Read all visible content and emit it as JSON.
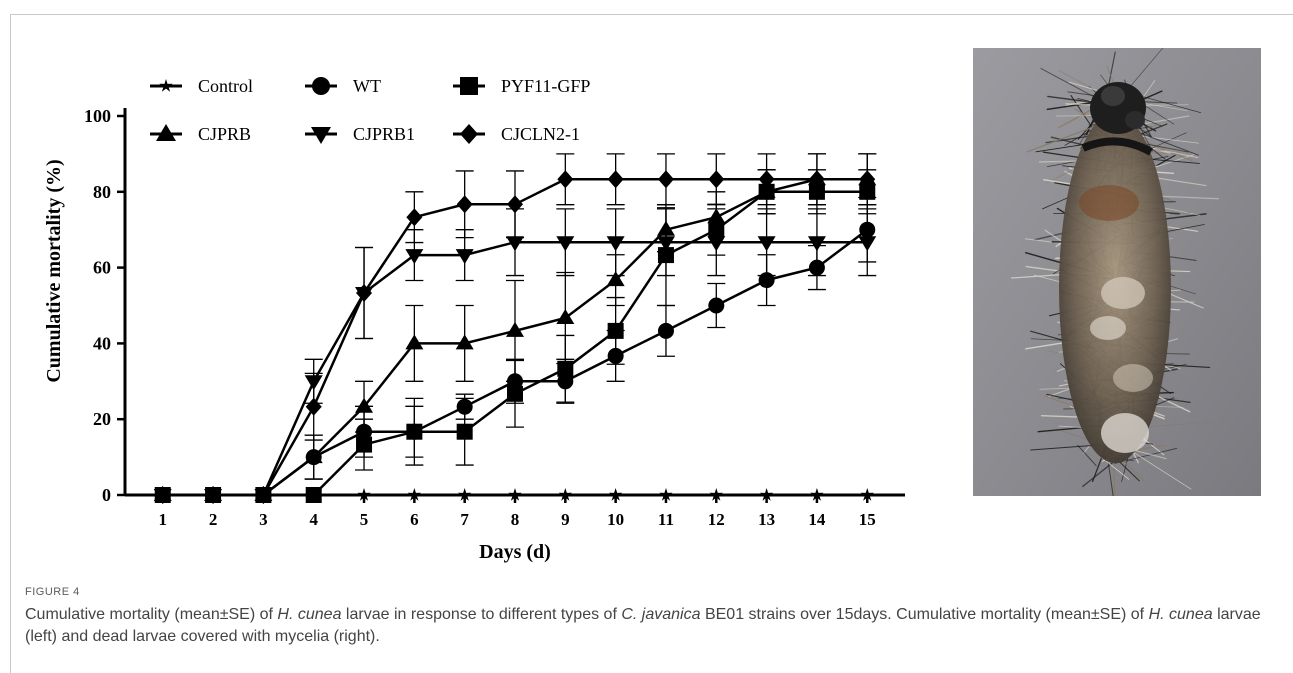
{
  "figure": {
    "label": "FIGURE 4",
    "caption_parts": [
      {
        "t": "Cumulative mortality (mean±SE) of ",
        "i": false
      },
      {
        "t": "H. cunea",
        "i": true
      },
      {
        "t": " larvae in response to different types of ",
        "i": false
      },
      {
        "t": "C. javanica",
        "i": true
      },
      {
        "t": " BE01 strains over 15days. Cumulative mortality (mean±SE) of ",
        "i": false
      },
      {
        "t": "H. cunea",
        "i": true
      },
      {
        "t": " larvae (left) and dead larvae covered with mycelia (right).",
        "i": false
      }
    ]
  },
  "colors": {
    "ink": "#000000",
    "caption": "#444444",
    "photo_bg": "#8a8a8e"
  },
  "chart_data": {
    "type": "line",
    "xlabel": "Days (d)",
    "ylabel": "Cumulative mortality (%)",
    "x": [
      1,
      2,
      3,
      4,
      5,
      6,
      7,
      8,
      9,
      10,
      11,
      12,
      13,
      14,
      15
    ],
    "xlim": [
      0.25,
      15.75
    ],
    "ylim": [
      0,
      100
    ],
    "yticks": [
      0,
      20,
      40,
      60,
      80,
      100
    ],
    "legend_position": "top",
    "series": [
      {
        "name": "Control",
        "marker": "star",
        "values": [
          0,
          0,
          0,
          0,
          0,
          0,
          0,
          0,
          0,
          0,
          0,
          0,
          0,
          0,
          0
        ],
        "err": [
          0,
          0,
          0,
          0,
          0,
          0,
          0,
          0,
          0,
          0,
          0,
          0,
          0,
          0,
          0
        ]
      },
      {
        "name": "WT",
        "marker": "circle",
        "values": [
          0,
          0,
          0,
          10,
          16.7,
          16.7,
          23.3,
          30,
          30,
          36.7,
          43.3,
          50,
          56.7,
          60,
          70
        ],
        "err": [
          0,
          0,
          0,
          5.8,
          6.7,
          8.8,
          3.3,
          5.8,
          5.8,
          6.7,
          6.7,
          5.8,
          6.7,
          5.8,
          8.5
        ]
      },
      {
        "name": "PYF11-GFP",
        "marker": "square",
        "values": [
          0,
          0,
          0,
          0,
          13.3,
          16.7,
          16.7,
          26.7,
          33.3,
          43.3,
          63.3,
          70,
          80,
          80,
          80
        ],
        "err": [
          0,
          0,
          0,
          0,
          6.7,
          6.7,
          8.8,
          8.8,
          8.8,
          8.8,
          13.3,
          6.7,
          5.8,
          5.8,
          5.8
        ]
      },
      {
        "name": "CJPRB",
        "marker": "triangle-up",
        "values": [
          0,
          0,
          0,
          10,
          23.3,
          40,
          40,
          43.3,
          46.7,
          56.7,
          70,
          73.3,
          80,
          83.3,
          83.3
        ],
        "err": [
          0,
          0,
          0,
          5.8,
          6.7,
          10,
          10,
          13.3,
          12,
          6.7,
          5.8,
          6.7,
          5.8,
          6.7,
          6.7
        ]
      },
      {
        "name": "CJPRB1",
        "marker": "triangle-down",
        "values": [
          0,
          0,
          0,
          30,
          53.3,
          63.3,
          63.3,
          66.7,
          66.7,
          66.7,
          66.7,
          66.7,
          66.7,
          66.7,
          66.7
        ],
        "err": [
          0,
          0,
          0,
          5.8,
          12,
          6.7,
          6.7,
          8.8,
          8.8,
          8.8,
          8.8,
          8.8,
          8.8,
          8.8,
          8.8
        ]
      },
      {
        "name": "CJCLN2-1",
        "marker": "diamond",
        "values": [
          0,
          0,
          0,
          23.3,
          53.3,
          73.3,
          76.7,
          76.7,
          83.3,
          83.3,
          83.3,
          83.3,
          83.3,
          83.3,
          83.3
        ],
        "err": [
          0,
          0,
          0,
          8.8,
          12,
          6.7,
          8.8,
          8.8,
          6.7,
          6.7,
          6.7,
          6.7,
          6.7,
          6.7,
          6.7
        ]
      }
    ]
  }
}
